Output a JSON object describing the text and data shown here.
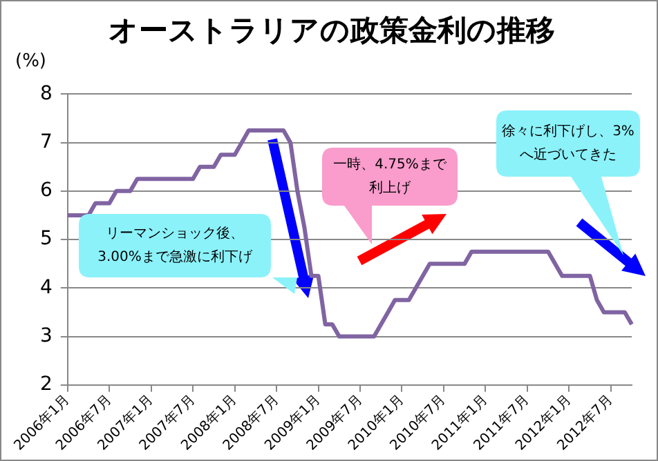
{
  "chart_data": {
    "type": "line",
    "title": "オーストラリアの政策金利の推移",
    "ylabel": "(%)",
    "categories": [
      "2006年1月",
      null,
      null,
      null,
      null,
      null,
      "2006年7月",
      null,
      null,
      null,
      null,
      null,
      "2007年1月",
      null,
      null,
      null,
      null,
      null,
      "2007年7月",
      null,
      null,
      null,
      null,
      null,
      "2008年1月",
      null,
      null,
      null,
      null,
      null,
      "2008年7月",
      null,
      null,
      null,
      null,
      null,
      "2009年1月",
      null,
      null,
      null,
      null,
      null,
      "2009年7月",
      null,
      null,
      null,
      null,
      null,
      "2010年1月",
      null,
      null,
      null,
      null,
      null,
      "2010年7月",
      null,
      null,
      null,
      null,
      null,
      "2011年1月",
      null,
      null,
      null,
      null,
      null,
      "2011年7月",
      null,
      null,
      null,
      null,
      null,
      "2012年1月",
      null,
      null,
      null,
      null,
      null,
      "2012年7月",
      null,
      null,
      null
    ],
    "series": [
      {
        "color": "#8064a2",
        "values": [
          5.5,
          5.5,
          5.5,
          5.5,
          5.75,
          5.75,
          5.75,
          6.0,
          6.0,
          6.0,
          6.25,
          6.25,
          6.25,
          6.25,
          6.25,
          6.25,
          6.25,
          6.25,
          6.25,
          6.5,
          6.5,
          6.5,
          6.75,
          6.75,
          6.75,
          7.0,
          7.25,
          7.25,
          7.25,
          7.25,
          7.25,
          7.25,
          7.0,
          6.0,
          5.25,
          4.25,
          4.25,
          3.25,
          3.25,
          3.0,
          3.0,
          3.0,
          3.0,
          3.0,
          3.0,
          3.25,
          3.5,
          3.75,
          3.75,
          3.75,
          4.0,
          4.25,
          4.5,
          4.5,
          4.5,
          4.5,
          4.5,
          4.5,
          4.75,
          4.75,
          4.75,
          4.75,
          4.75,
          4.75,
          4.75,
          4.75,
          4.75,
          4.75,
          4.75,
          4.75,
          4.5,
          4.25,
          4.25,
          4.25,
          4.25,
          4.25,
          3.75,
          3.5,
          3.5,
          3.5,
          3.5,
          3.25
        ]
      }
    ],
    "ylim": [
      2,
      8
    ],
    "yticks": [
      2,
      3,
      4,
      5,
      6,
      7,
      8
    ],
    "grid": "y",
    "legend": false,
    "marker": "none",
    "line_style": "solid",
    "annotations": [
      "リーマンショック後、3.00%まで急激に利下げ",
      "一時、4.75%まで利上げ",
      "徐々に利下げし、3%へ近づいてきた"
    ]
  }
}
